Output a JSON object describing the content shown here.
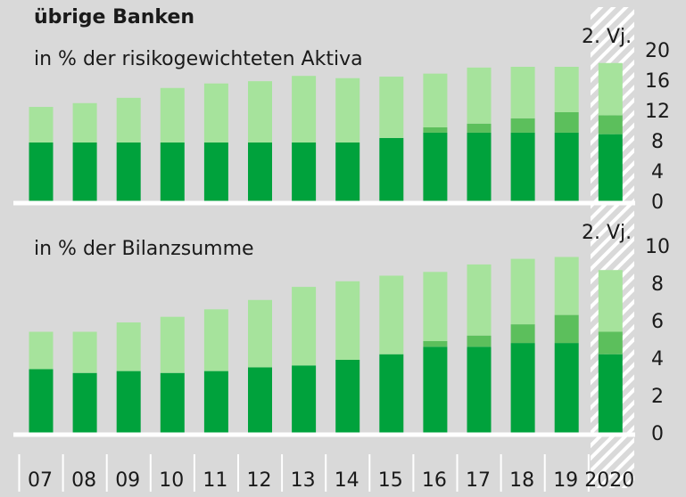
{
  "chart_data": [
    {
      "type": "stacked-bar",
      "title": "übrige Banken",
      "subtitle": "in % der risikogewichteten Aktiva",
      "annotation": "2. Vj.",
      "categories": [
        "07",
        "08",
        "09",
        "10",
        "11",
        "12",
        "13",
        "14",
        "15",
        "16",
        "17",
        "18",
        "19",
        "2020"
      ],
      "series": [
        {
          "color": "#00a23c",
          "values": [
            8.0,
            8.0,
            8.0,
            8.0,
            8.0,
            8.0,
            8.0,
            8.0,
            8.6,
            9.3,
            9.3,
            9.3,
            9.3,
            9.1
          ]
        },
        {
          "color": "#5cbf5c",
          "values": [
            0,
            0,
            0,
            0,
            0,
            0,
            0,
            0,
            0,
            0.7,
            1.2,
            1.9,
            2.7,
            2.5
          ]
        },
        {
          "color": "#a6e39c",
          "values": [
            4.7,
            5.2,
            5.9,
            7.2,
            7.8,
            8.1,
            8.8,
            8.5,
            8.1,
            7.1,
            7.4,
            6.8,
            6.0,
            6.9
          ]
        }
      ],
      "ylim": [
        0,
        20
      ],
      "yticks": [
        0,
        4,
        8,
        12,
        16,
        20
      ]
    },
    {
      "type": "stacked-bar",
      "subtitle": "in % der Bilanzsumme",
      "annotation": "2. Vj.",
      "series": [
        {
          "color": "#00a23c",
          "values": [
            3.5,
            3.3,
            3.4,
            3.3,
            3.4,
            3.6,
            3.7,
            4.0,
            4.3,
            4.7,
            4.7,
            4.9,
            4.9,
            4.3
          ]
        },
        {
          "color": "#5cbf5c",
          "values": [
            0,
            0,
            0,
            0,
            0,
            0,
            0,
            0,
            0,
            0.3,
            0.6,
            1.0,
            1.5,
            1.2
          ]
        },
        {
          "color": "#a6e39c",
          "values": [
            2.0,
            2.2,
            2.6,
            3.0,
            3.3,
            3.6,
            4.2,
            4.2,
            4.2,
            3.7,
            3.8,
            3.5,
            3.1,
            3.3
          ]
        }
      ],
      "ylim": [
        0,
        10
      ],
      "yticks": [
        0,
        2,
        4,
        6,
        8,
        10
      ]
    }
  ]
}
